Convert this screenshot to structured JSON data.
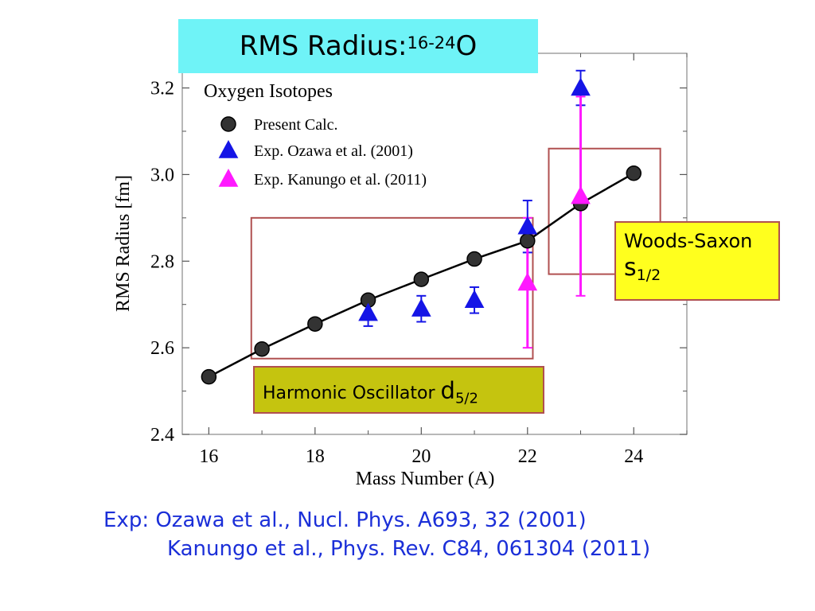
{
  "slide": {
    "title_text": "RMS Radius: ",
    "title_sup": "16-24",
    "title_element": "O",
    "ws_label": "Woods-Saxon",
    "ws_orbital": "s",
    "ws_sub": "1/2",
    "ho_label": "Harmonic Oscillator ",
    "ho_orbital": "d",
    "ho_sub": "5/2",
    "ref_line1": "Exp: Ozawa et al., Nucl. Phys. A693, 32 (2001)",
    "ref_line2": "Kanungo et al., Phys. Rev. C84, 061304 (2011)"
  },
  "colors": {
    "title_bg": "#6ff3f7",
    "ozawa": "#1515e6",
    "kanungo": "#ff19ff",
    "calc": "#333333",
    "region_border": "#b05050",
    "ws_bg": "#ffff1e",
    "ho_bg": "#c5c40f",
    "refs_text": "#1b2fd8"
  },
  "chart_data": {
    "type": "scatter",
    "title": "",
    "xlabel": "Mass Number (A)",
    "ylabel": "RMS Radius  [fm]",
    "xlim": [
      15.5,
      25
    ],
    "ylim": [
      2.4,
      3.28
    ],
    "xticks": [
      16,
      18,
      20,
      22,
      24
    ],
    "yticks": [
      2.4,
      2.6,
      2.8,
      3.0,
      3.2
    ],
    "xtick_labels": [
      "16",
      "18",
      "20",
      "22",
      "24"
    ],
    "ytick_labels": [
      "2.4",
      "2.6",
      "2.8",
      "3.0",
      "3.2"
    ],
    "legend_title": "Oxygen Isotopes",
    "legend_position": "top-left",
    "series": [
      {
        "name": "Present Calc.",
        "marker": "circle",
        "line": true,
        "x": [
          16,
          17,
          18,
          19,
          20,
          21,
          22,
          23,
          24
        ],
        "y": [
          2.533,
          2.597,
          2.655,
          2.71,
          2.758,
          2.805,
          2.847,
          2.933,
          3.003
        ]
      },
      {
        "name": "Exp.  Ozawa et al. (2001)",
        "marker": "triangle",
        "x": [
          19,
          20,
          21,
          22,
          23
        ],
        "y": [
          2.68,
          2.69,
          2.71,
          2.88,
          3.2
        ],
        "yerr": [
          0.03,
          0.03,
          0.03,
          0.06,
          0.04
        ]
      },
      {
        "name": "Exp.  Kanungo et al. (2011)",
        "marker": "triangle",
        "x": [
          22,
          23
        ],
        "y": [
          2.75,
          2.95
        ],
        "yerr_low": [
          0.15,
          0.23
        ],
        "yerr_high": [
          0.15,
          0.23
        ]
      }
    ],
    "regions": [
      {
        "name": "harmonic-oscillator-region",
        "x": [
          16.8,
          22.1
        ],
        "y": [
          2.575,
          2.9
        ]
      },
      {
        "name": "woods-saxon-region",
        "x": [
          22.4,
          24.5
        ],
        "y": [
          2.77,
          3.06
        ]
      }
    ]
  }
}
